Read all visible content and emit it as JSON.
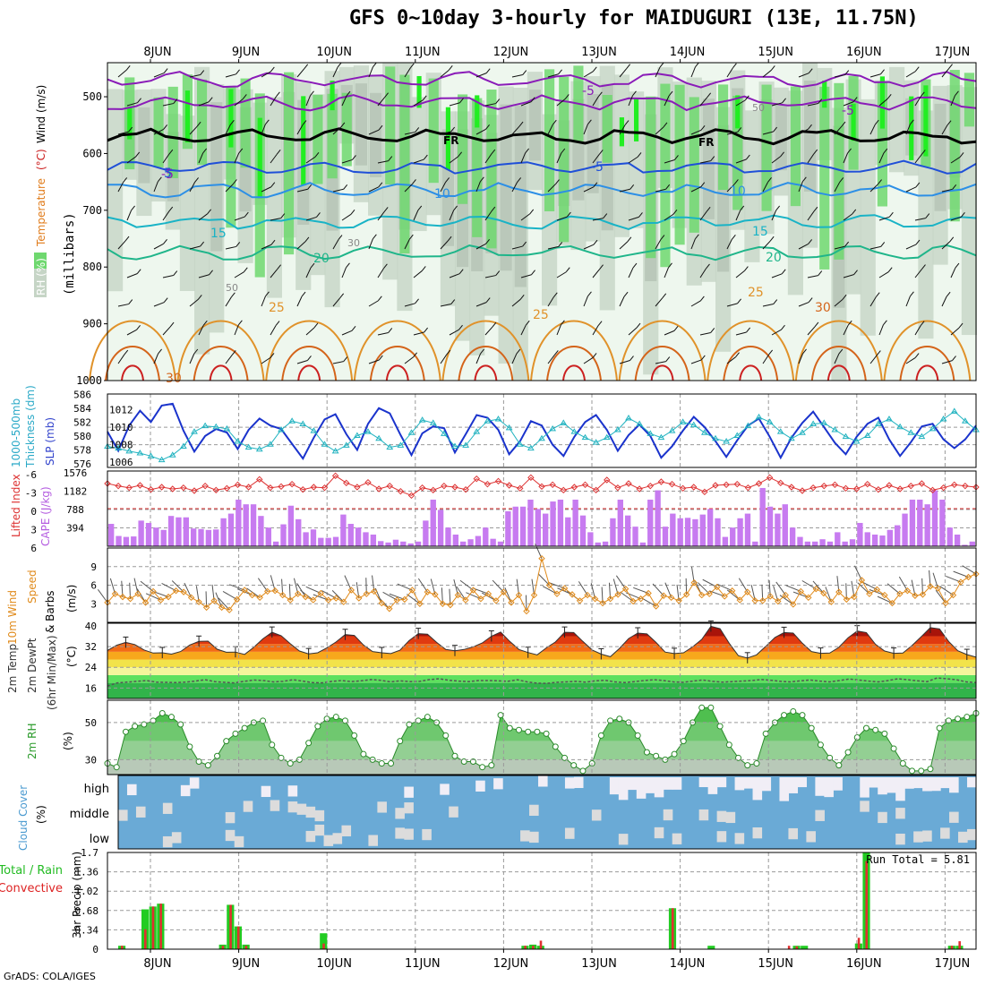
{
  "title": "GFS 0~10day 3-hourly for MAIDUGURI (13E, 11.75N)",
  "credit": "GrADS: COLA/IGES",
  "colors": {
    "rh_light": "#eef7ee",
    "rh_mid": "#c6d5c6",
    "rh_dark": "#a9b8a9",
    "rh_green": "#6fd86f",
    "rh_bright": "#22ee22",
    "sst_freezing": "#000000",
    "iso_m5": "#8a1bb8",
    "iso_5": "#1f4fd8",
    "iso_10": "#2c8fe6",
    "iso_15": "#19b3c6",
    "iso_20": "#1fb58a",
    "iso_25": "#e0922a",
    "iso_30": "#d4641a",
    "iso_35": "#cc2020",
    "slp": "#1a33cc",
    "thickness": "#22b3c0",
    "lifted": "#dd3333",
    "cape": "#c77bf0",
    "wind": "#e08a1a",
    "rh2m": "#5cc85c",
    "cloud": "#6aaad6",
    "cloud_clear": "#f1eef6",
    "cloud_part": "#dcdcdc",
    "precip_total": "#22cc22",
    "precip_conv": "#e03030"
  },
  "chart_data": [
    {
      "panel": "upper_air",
      "type": "heatmap",
      "ylabel": "Wind (m/s)  Temperature (°C)  RH (%)  (millibars)",
      "yticks": [
        500,
        600,
        700,
        800,
        900,
        1000
      ],
      "x_ticks_top": [
        "8JUN",
        "9JUN",
        "10JUN",
        "11JUN",
        "12JUN",
        "13JUN",
        "14JUN",
        "15JUN",
        "16JUN",
        "17JUN"
      ],
      "ylim": [
        440,
        1000
      ],
      "isotherm_labels": [
        "-5",
        "-5",
        "FR",
        "FR",
        "-5",
        "-5",
        "5",
        "10",
        "10",
        "15",
        "15",
        "20",
        "20",
        "25",
        "25",
        "25",
        "30",
        "30"
      ],
      "rh_labels": [
        "50",
        "30",
        "50"
      ],
      "isotherms": [
        {
          "label": "-5",
          "p": 470,
          "color": "iso_m5"
        },
        {
          "label": "-5b",
          "p": 510,
          "color": "iso_m5"
        },
        {
          "label": "FR",
          "p": 570,
          "color": "sst_freezing"
        },
        {
          "label": "5",
          "p": 625,
          "color": "iso_5"
        },
        {
          "label": "10",
          "p": 665,
          "color": "iso_10"
        },
        {
          "label": "15",
          "p": 720,
          "color": "iso_15"
        },
        {
          "label": "20",
          "p": 775,
          "color": "iso_20"
        }
      ]
    },
    {
      "panel": "slp_thickness",
      "type": "line",
      "ylabel_left": "1000-500mb Thickness (dm)",
      "ylabel_right": "SLP (mb)",
      "yticks_left": [
        576,
        578,
        580,
        582,
        584,
        586
      ],
      "yticks_right": [
        1006,
        1008,
        1010,
        1012
      ],
      "series": [
        {
          "name": "SLP (mb)",
          "values": [
            1009.5,
            1007.3,
            1010.2,
            1011.9,
            1010.6,
            1012.5,
            1012.7,
            1009.6,
            1007.2,
            1009.0,
            1009.8,
            1009.4,
            1007.5,
            1009.7,
            1011.0,
            1010.2,
            1009.8,
            1008.1,
            1006.4,
            1008.8,
            1010.9,
            1011.5,
            1009.2,
            1007.4,
            1010.4,
            1012.2,
            1011.6,
            1009.1,
            1006.8,
            1009.3,
            1010.1,
            1009.9,
            1007.1,
            1009.2,
            1011.4,
            1011.1,
            1009.7,
            1006.9,
            1008.4,
            1010.7,
            1010.2,
            1008.0,
            1006.7,
            1008.9,
            1010.6,
            1011.4,
            1009.7,
            1007.3,
            1009.1,
            1010.3,
            1009.0,
            1006.5,
            1007.8,
            1009.6,
            1011.2,
            1010.0,
            1008.4,
            1006.6,
            1008.5,
            1010.2,
            1011.0,
            1008.9,
            1006.5,
            1008.8,
            1010.5,
            1011.8,
            1010.0,
            1008.2,
            1006.9,
            1008.9,
            1010.4,
            1011.1,
            1008.6,
            1006.7,
            1008.3,
            1010.1,
            1010.4,
            1008.6,
            1007.6,
            1008.6,
            1010.2
          ]
        },
        {
          "name": "1000-500mb Thickness (dm)",
          "values": [
            580.8,
            580.6,
            580.3,
            580.1,
            579.8,
            579.4,
            579.9,
            580.8,
            582.3,
            582.9,
            582.8,
            582.6,
            581.3,
            580.7,
            580.5,
            581.0,
            582.5,
            583.4,
            583.1,
            582.4,
            581.0,
            580.3,
            580.9,
            581.9,
            582.3,
            581.6,
            580.7,
            580.9,
            582.2,
            583.5,
            583.2,
            582.1,
            580.8,
            580.9,
            582.3,
            583.4,
            583.6,
            582.7,
            581.0,
            580.6,
            581.6,
            582.6,
            583.2,
            582.3,
            581.7,
            581.2,
            581.7,
            582.5,
            583.7,
            583.1,
            582.1,
            581.7,
            582.4,
            583.3,
            583.0,
            582.2,
            581.6,
            581.3,
            581.9,
            582.9,
            583.8,
            583.3,
            582.3,
            581.6,
            582.2,
            583.1,
            583.2,
            582.5,
            581.8,
            581.3,
            581.9,
            583.1,
            583.6,
            582.8,
            582.2,
            581.8,
            582.6,
            583.6,
            584.4,
            583.4,
            582.5
          ]
        }
      ]
    },
    {
      "panel": "cape_lifted",
      "type": "bar",
      "ylabel_left": "Lifted Index",
      "ylabel_right": "CAPE (J/kg)",
      "yticks_left": [
        "-6",
        "-3",
        "0",
        "3",
        "6"
      ],
      "yticks_right": [
        "1576",
        "1182",
        "788",
        "394"
      ],
      "series": [
        {
          "name": "CAPE (J/kg)",
          "values": [
            480,
            220,
            200,
            210,
            550,
            500,
            400,
            350,
            650,
            620,
            620,
            380,
            370,
            350,
            360,
            600,
            700,
            1000,
            900,
            900,
            650,
            400,
            100,
            470,
            870,
            580,
            300,
            360,
            180,
            180,
            200,
            680,
            480,
            400,
            300,
            250,
            110,
            80,
            140,
            100,
            60,
            100,
            550,
            1000,
            780,
            400,
            250,
            100,
            150,
            220,
            400,
            160,
            100,
            750,
            850,
            850,
            1000,
            800,
            700,
            960,
            1000,
            620,
            1000,
            660,
            300,
            80,
            100,
            600,
            1000,
            660,
            420,
            80,
            1000,
            1200,
            420,
            700,
            600,
            610,
            580,
            680,
            800,
            600,
            200,
            400,
            600,
            700,
            100,
            1250,
            850,
            700,
            900,
            400,
            200,
            100,
            100,
            150,
            100,
            300,
            100,
            150,
            500,
            300,
            250,
            230,
            350,
            450,
            700,
            1000,
            1000,
            900,
            1200,
            1000,
            400,
            250,
            30,
            100
          ]
        },
        {
          "name": "Lifted Index",
          "values": [
            -4.2,
            -3.8,
            -3.5,
            -3.9,
            -3.2,
            -3.6,
            -3.3,
            -3.5,
            -3.0,
            -3.8,
            -3.1,
            -3.4,
            -4.0,
            -3.6,
            -4.9,
            -3.5,
            -3.7,
            -4.1,
            -3.2,
            -3.6,
            -3.5,
            -5.5,
            -4.3,
            -3.6,
            -4.4,
            -3.3,
            -3.8,
            -2.9,
            -2.2,
            -3.5,
            -3.1,
            -3.8,
            -3.6,
            -3.2,
            -5.0,
            -4.1,
            -4.6,
            -3.9,
            -3.4,
            -5.2,
            -3.7,
            -4.0,
            -3.1,
            -3.6,
            -4.0,
            -3.1,
            -4.8,
            -3.5,
            -4.2,
            -3.3,
            -3.8,
            -4.5,
            -4.1,
            -3.4,
            -3.6,
            -2.8,
            -3.9,
            -4.0,
            -4.1,
            -3.5,
            -4.2,
            -5.2,
            -4.3,
            -3.6,
            -3.0,
            -3.5,
            -3.8,
            -4.0,
            -3.4,
            -3.3,
            -4.1,
            -3.2,
            -3.9,
            -3.3,
            -3.8,
            -4.2,
            -3.1,
            -3.5,
            -4.0,
            -3.8,
            -3.6
          ]
        }
      ]
    },
    {
      "panel": "wind10m",
      "type": "line",
      "ylabel": "10m Wind Speed & Barbs (m/s)",
      "yticks": [
        3,
        6,
        9
      ],
      "ylim": [
        0,
        12
      ],
      "values": [
        3.2,
        4.6,
        4.1,
        3.8,
        4.6,
        3.2,
        5.0,
        3.6,
        4.1,
        5.1,
        4.9,
        4.0,
        3.3,
        2.4,
        3.5,
        2.4,
        2.0,
        3.7,
        5.2,
        4.4,
        4.0,
        5.0,
        5.1,
        4.4,
        3.6,
        4.6,
        4.1,
        3.6,
        4.7,
        3.6,
        3.9,
        3.3,
        5.2,
        3.9,
        4.6,
        5.0,
        3.1,
        2.2,
        3.6,
        3.7,
        5.2,
        3.0,
        4.9,
        4.5,
        3.0,
        2.8,
        4.4,
        3.6,
        5.2,
        3.8,
        4.6,
        3.5,
        4.9,
        3.2,
        4.4,
        1.8,
        4.4,
        10.3,
        6.0,
        4.6,
        5.5,
        4.5,
        3.5,
        4.4,
        3.8,
        3.1,
        3.8,
        4.5,
        5.4,
        3.4,
        3.8,
        4.7,
        2.6,
        4.3,
        4.0,
        3.5,
        4.5,
        6.4,
        4.4,
        4.6,
        5.7,
        4.2,
        5.1,
        3.6,
        4.9,
        3.5,
        3.5,
        4.2,
        3.4,
        4.4,
        2.9,
        5.0,
        4.0,
        5.4,
        4.7,
        3.3,
        4.9,
        3.7,
        4.1,
        6.8,
        4.6,
        5.3,
        4.4,
        3.1,
        4.6,
        5.1,
        4.3,
        4.5,
        5.8,
        5.5,
        3.1,
        4.4,
        6.5,
        7.3,
        7.8
      ]
    },
    {
      "panel": "temp2m",
      "type": "area",
      "ylabel": "2m Temp 2m DewPt (6hr Min/Max) (°C)",
      "yticks": [
        16,
        24,
        32,
        40
      ],
      "ylim": [
        12,
        41
      ],
      "series": [
        {
          "name": "2m Temp",
          "values": [
            30.5,
            32.5,
            33.6,
            32.8,
            30.7,
            29.5,
            29.6,
            29.1,
            30.1,
            32.6,
            34.0,
            34.1,
            31.0,
            29.8,
            29.9,
            29.0,
            31.7,
            35.0,
            37.5,
            36.2,
            33.1,
            30.3,
            29.2,
            29.6,
            31.5,
            33.8,
            36.6,
            36.3,
            32.6,
            30.1,
            29.6,
            29.3,
            30.6,
            34.3,
            37.0,
            36.8,
            33.6,
            30.9,
            30.4,
            30.9,
            31.9,
            33.4,
            36.0,
            37.6,
            34.0,
            30.9,
            29.7,
            28.8,
            31.5,
            33.8,
            37.5,
            37.4,
            34.0,
            30.7,
            29.1,
            28.1,
            31.3,
            35.1,
            37.2,
            36.9,
            33.6,
            29.9,
            29.3,
            29.6,
            31.9,
            34.8,
            39.8,
            38.9,
            33.3,
            28.5,
            27.6,
            28.8,
            32.1,
            35.5,
            37.4,
            37.2,
            33.3,
            30.1,
            29.4,
            29.5,
            31.7,
            35.4,
            38.0,
            37.4,
            32.9,
            30.3,
            29.4,
            29.5,
            32.4,
            35.8,
            39.3,
            38.8,
            34.0,
            30.4,
            28.9,
            27.9
          ]
        },
        {
          "name": "2m DewPt",
          "values": [
            16.8,
            18.0,
            18.3,
            18.6,
            18.9,
            18.3,
            18.2,
            18.1,
            18.3,
            18.7,
            19.2,
            18.5,
            18.2,
            18.0,
            18.6,
            19.1,
            18.9,
            18.4,
            18.6,
            19.2,
            18.7,
            18.1,
            18.0,
            18.6,
            18.9,
            18.5,
            18.8,
            19.3,
            19.0,
            18.4,
            18.8,
            18.5,
            18.6,
            19.3,
            19.6,
            19.0,
            18.7,
            18.5,
            18.9,
            18.9,
            18.8,
            18.6,
            19.2,
            18.4,
            17.9,
            17.8,
            18.2,
            18.4,
            18.6,
            18.3,
            18.8,
            19.0,
            18.4,
            18.1,
            18.5,
            18.9,
            19.2,
            18.9,
            18.4,
            18.2,
            18.7,
            19.1,
            18.6,
            18.3,
            18.5,
            18.7,
            18.9,
            19.3,
            19.0,
            18.6,
            18.4,
            18.8,
            19.1,
            18.7,
            18.4,
            18.9,
            19.5,
            19.1,
            18.7,
            18.4,
            18.9,
            19.6,
            19.2,
            18.8,
            18.5,
            19.9,
            19.6,
            19.2,
            18.4,
            18.1
          ]
        }
      ]
    },
    {
      "panel": "rh2m",
      "type": "area",
      "ylabel": "2m RH (%)",
      "yticks": [
        30,
        50
      ],
      "ylim": [
        22,
        62
      ],
      "values": [
        28,
        26,
        45,
        48,
        49,
        51,
        55,
        53,
        49,
        37,
        29,
        27,
        32,
        40,
        44,
        47,
        50,
        51,
        38,
        31,
        28,
        30,
        39,
        48,
        52,
        53,
        51,
        43,
        33,
        30,
        28,
        28,
        40,
        49,
        51,
        53,
        50,
        43,
        32,
        29,
        29,
        26,
        27,
        54,
        47,
        46,
        45,
        45,
        44,
        37,
        31,
        27,
        24,
        28,
        43,
        51,
        52,
        50,
        43,
        34,
        32,
        30,
        33,
        40,
        50,
        58,
        58,
        48,
        38,
        31,
        27,
        28,
        44,
        50,
        54,
        56,
        54,
        47,
        38,
        31,
        27,
        34,
        42,
        47,
        46,
        44,
        36,
        28,
        24,
        24,
        25,
        47,
        51,
        52,
        53,
        55
      ]
    },
    {
      "panel": "cloud_cover",
      "type": "heatmap",
      "ylabel": "Cloud Cover (%)",
      "rows": [
        "high",
        "middle",
        "low"
      ]
    },
    {
      "panel": "precip",
      "type": "bar",
      "ylabel": "3hr Precip (mm)",
      "legend": [
        "Total / Rain",
        "Convective"
      ],
      "yticks": [
        "0",
        "0.34",
        "0.68",
        "1.02",
        "1.36",
        "1.7"
      ],
      "ylim": [
        0,
        1.7
      ],
      "annotation": "Run Total = 5.81",
      "x_ticks_bottom": [
        "8JUN",
        "9JUN",
        "10JUN",
        "11JUN",
        "12JUN",
        "13JUN",
        "14JUN",
        "15JUN",
        "16JUN",
        "17JUN"
      ],
      "bars": [
        {
          "i": 0,
          "total": 0.06,
          "conv": 0.06
        },
        {
          "i": 3,
          "total": 0.7,
          "conv": 0.35
        },
        {
          "i": 4,
          "total": 0.75,
          "conv": 0.75
        },
        {
          "i": 5,
          "total": 0.8,
          "conv": 0.8
        },
        {
          "i": 13,
          "total": 0.08,
          "conv": 0.06
        },
        {
          "i": 14,
          "total": 0.78,
          "conv": 0.78
        },
        {
          "i": 15,
          "total": 0.4,
          "conv": 0.4
        },
        {
          "i": 16,
          "total": 0.08,
          "conv": 0.06
        },
        {
          "i": 26,
          "total": 0.28,
          "conv": 0.1
        },
        {
          "i": 52,
          "total": 0.06,
          "conv": 0.06
        },
        {
          "i": 53,
          "total": 0.08,
          "conv": 0.06
        },
        {
          "i": 54,
          "total": 0.06,
          "conv": 0.15
        },
        {
          "i": 71,
          "total": 0.72,
          "conv": 0.72
        },
        {
          "i": 76,
          "total": 0.06,
          "conv": 0.0
        },
        {
          "i": 86,
          "total": 0.0,
          "conv": 0.06
        },
        {
          "i": 87,
          "total": 0.06,
          "conv": 0.05
        },
        {
          "i": 88,
          "total": 0.06,
          "conv": 0.0
        },
        {
          "i": 95,
          "total": 0.1,
          "conv": 0.2
        },
        {
          "i": 96,
          "total": 1.7,
          "conv": 1.55
        },
        {
          "i": 107,
          "total": 0.06,
          "conv": 0.06
        },
        {
          "i": 108,
          "total": 0.06,
          "conv": 0.14
        }
      ]
    }
  ]
}
